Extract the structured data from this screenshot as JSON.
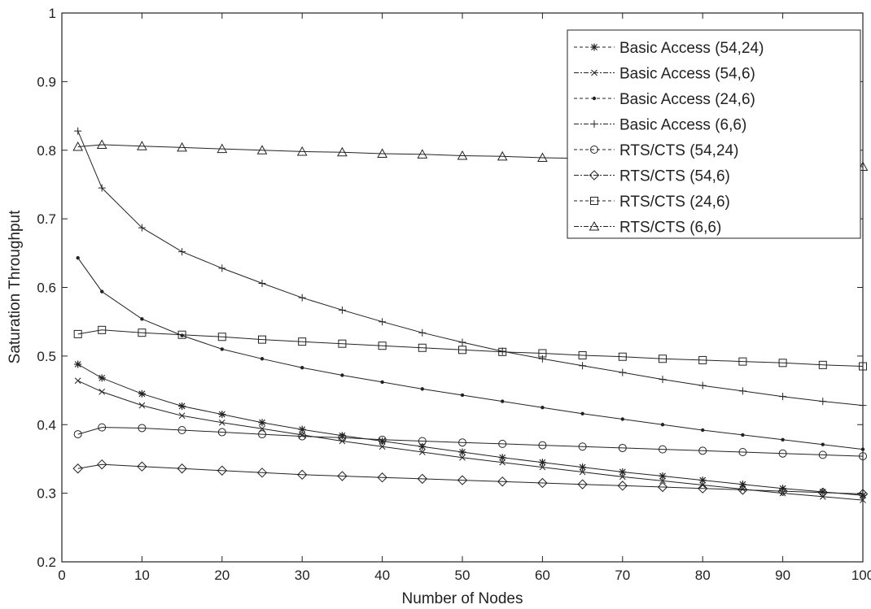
{
  "chart_data": {
    "type": "line",
    "title": "",
    "xlabel": "Number of Nodes",
    "ylabel": "Saturation Throughput",
    "xlim": [
      0,
      100
    ],
    "ylim": [
      0.2,
      1.0
    ],
    "xticks": [
      0,
      10,
      20,
      30,
      40,
      50,
      60,
      70,
      80,
      90,
      100
    ],
    "yticks": [
      0.2,
      0.3,
      0.4,
      0.5,
      0.6,
      0.7,
      0.8,
      0.9,
      1.0
    ],
    "xtick_labels": [
      "0",
      "10",
      "20",
      "30",
      "40",
      "50",
      "60",
      "70",
      "80",
      "90",
      "100"
    ],
    "ytick_labels": [
      "0.2",
      "0.3",
      "0.4",
      "0.5",
      "0.6",
      "0.7",
      "0.8",
      "0.9",
      "1"
    ],
    "grid": false,
    "legend_position": "top-right",
    "line_color": "#222222",
    "x": [
      2,
      5,
      10,
      15,
      20,
      25,
      30,
      35,
      40,
      45,
      50,
      55,
      60,
      65,
      70,
      75,
      80,
      85,
      90,
      95,
      100
    ],
    "series": [
      {
        "name": "Basic Access (54,24)",
        "marker": "star",
        "values": [
          0.488,
          0.468,
          0.445,
          0.427,
          0.415,
          0.403,
          0.393,
          0.384,
          0.376,
          0.368,
          0.36,
          0.352,
          0.345,
          0.338,
          0.331,
          0.325,
          0.319,
          0.313,
          0.307,
          0.302,
          0.297
        ]
      },
      {
        "name": "Basic Access (54,6)",
        "marker": "x",
        "values": [
          0.464,
          0.448,
          0.428,
          0.413,
          0.403,
          0.394,
          0.385,
          0.376,
          0.368,
          0.36,
          0.352,
          0.345,
          0.338,
          0.331,
          0.324,
          0.318,
          0.312,
          0.306,
          0.3,
          0.295,
          0.29
        ]
      },
      {
        "name": "Basic Access (24,6)",
        "marker": "dot",
        "values": [
          0.643,
          0.594,
          0.554,
          0.53,
          0.51,
          0.496,
          0.483,
          0.472,
          0.462,
          0.452,
          0.443,
          0.434,
          0.425,
          0.416,
          0.408,
          0.4,
          0.392,
          0.385,
          0.378,
          0.371,
          0.364
        ]
      },
      {
        "name": "Basic Access (6,6)",
        "marker": "plus",
        "values": [
          0.828,
          0.745,
          0.687,
          0.652,
          0.628,
          0.606,
          0.585,
          0.567,
          0.55,
          0.534,
          0.52,
          0.507,
          0.496,
          0.486,
          0.476,
          0.466,
          0.457,
          0.449,
          0.441,
          0.434,
          0.428
        ]
      },
      {
        "name": "RTS/CTS (54,24)",
        "marker": "circle",
        "values": [
          0.386,
          0.396,
          0.395,
          0.392,
          0.389,
          0.386,
          0.383,
          0.381,
          0.378,
          0.376,
          0.374,
          0.372,
          0.37,
          0.368,
          0.366,
          0.364,
          0.362,
          0.36,
          0.358,
          0.356,
          0.354
        ]
      },
      {
        "name": "RTS/CTS (54,6)",
        "marker": "diamond",
        "values": [
          0.336,
          0.342,
          0.339,
          0.336,
          0.333,
          0.33,
          0.327,
          0.325,
          0.323,
          0.321,
          0.319,
          0.317,
          0.315,
          0.313,
          0.311,
          0.309,
          0.307,
          0.305,
          0.303,
          0.301,
          0.299
        ]
      },
      {
        "name": "RTS/CTS (24,6)",
        "marker": "square",
        "values": [
          0.532,
          0.538,
          0.534,
          0.531,
          0.528,
          0.524,
          0.521,
          0.518,
          0.515,
          0.512,
          0.509,
          0.506,
          0.504,
          0.501,
          0.499,
          0.496,
          0.494,
          0.492,
          0.49,
          0.487,
          0.485
        ]
      },
      {
        "name": "RTS/CTS (6,6)",
        "marker": "triangle",
        "values": [
          0.805,
          0.808,
          0.806,
          0.804,
          0.802,
          0.8,
          0.798,
          0.797,
          0.795,
          0.794,
          0.792,
          0.791,
          0.789,
          0.788,
          0.787,
          0.786,
          0.784,
          0.783,
          0.781,
          0.779,
          0.776
        ]
      }
    ]
  }
}
